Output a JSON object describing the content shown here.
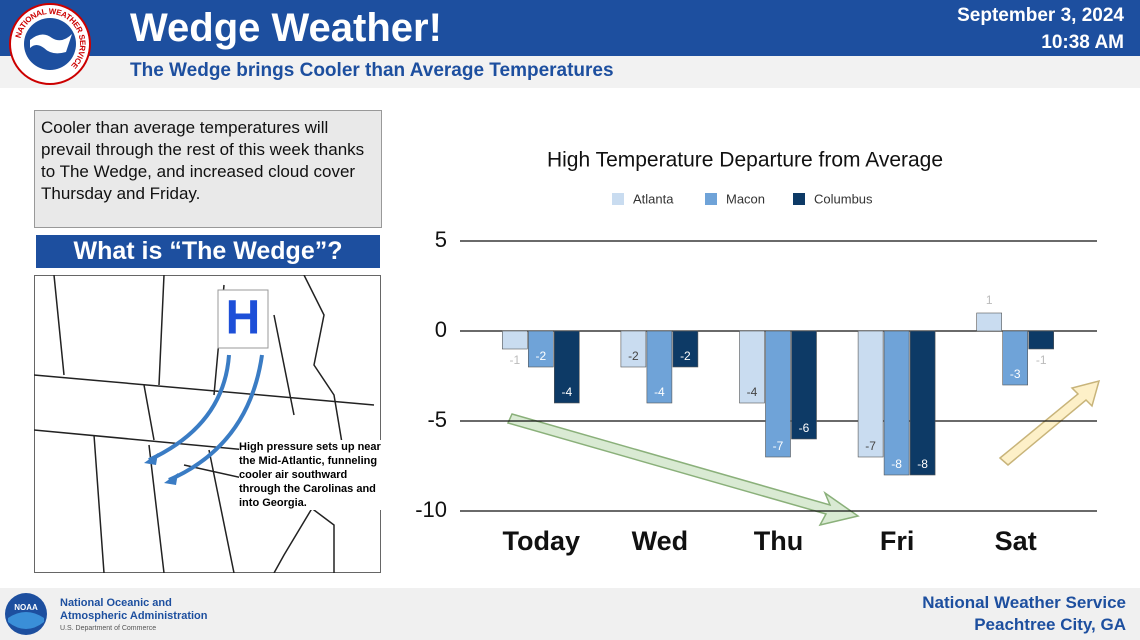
{
  "header": {
    "logo_text": "NATIONAL WEATHER SERVICE",
    "title": "Wedge Weather!",
    "subtitle": "The Wedge brings Cooler than Average Temperatures",
    "date": "September 3, 2024",
    "time": "10:38 AM"
  },
  "summary": "Cooler than average temperatures will prevail through the rest of this week thanks to The Wedge, and increased cloud cover Thursday and Friday.",
  "wedge": {
    "heading": "What is “The Wedge”?",
    "marker": "H",
    "caption": "High pressure sets up near the Mid-Atlantic, funneling cooler air southward through the Carolinas and into Georgia."
  },
  "footer": {
    "noaa_logo": "NOAA",
    "agency_line1": "National Oceanic and",
    "agency_line2": "Atmospheric Administration",
    "department": "U.S. Department of Commerce",
    "office_line1": "National Weather Service",
    "office_line2": "Peachtree City, GA"
  },
  "chart_data": {
    "type": "bar",
    "title": "High Temperature Departure from Average",
    "categories": [
      "Today",
      "Wed",
      "Thu",
      "Fri",
      "Sat"
    ],
    "series": [
      {
        "name": "Atlanta",
        "color": "#c9dcf0",
        "values": [
          -1,
          -2,
          -4,
          -7,
          1
        ]
      },
      {
        "name": "Macon",
        "color": "#6fa3d8",
        "values": [
          -2,
          -4,
          -7,
          -8,
          -3
        ]
      },
      {
        "name": "Columbus",
        "color": "#0d3a66",
        "values": [
          -4,
          -2,
          -6,
          -8,
          -1
        ]
      }
    ],
    "ylim": [
      -10,
      5
    ],
    "yticks": [
      5,
      0,
      -5,
      -10
    ],
    "grid": true,
    "legend": "top"
  }
}
